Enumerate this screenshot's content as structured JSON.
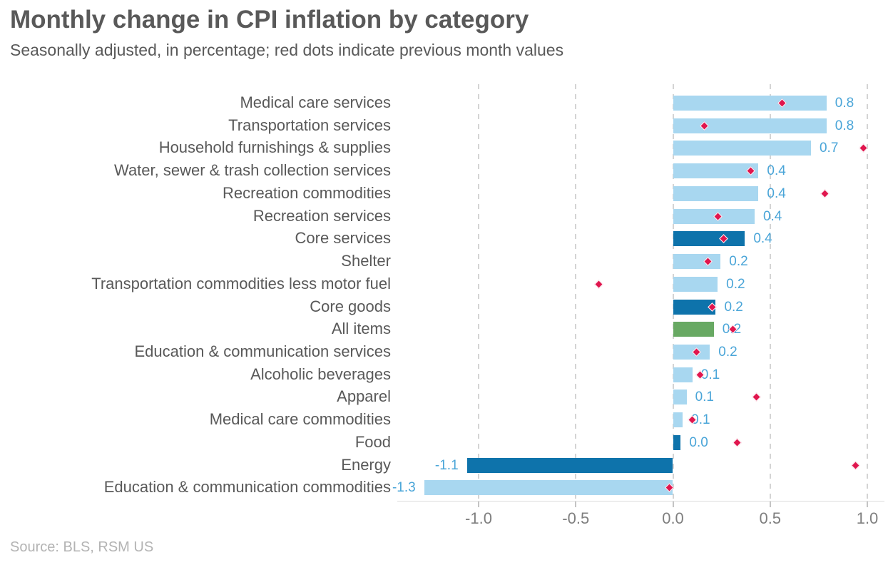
{
  "header": {
    "title": "Monthly change in CPI inflation by category",
    "subtitle": "Seasonally adjusted, in percentage; red dots indicate previous month values"
  },
  "footer": {
    "source": "Source: BLS, RSM US"
  },
  "colors": {
    "bar_light_blue": "#a8d7f0",
    "bar_dark_blue": "#0e73ab",
    "bar_green": "#68a963",
    "dot_red": "#e0164e",
    "value_label": "#4aa5d8",
    "category_label": "#595959",
    "axis_label": "#7f7f7f",
    "gridline": "#d4d4d4",
    "title_text": "#595959",
    "source_text": "#b3b3b3"
  },
  "chart_data": {
    "type": "bar",
    "orientation": "horizontal",
    "title": "Monthly change in CPI inflation by category",
    "subtitle": "Seasonally adjusted, in percentage; red dots indicate previous month values",
    "xlabel": "",
    "ylabel": "",
    "xlim": [
      -1.4,
      1.1
    ],
    "x_ticks": [
      -1.0,
      -0.5,
      0.0,
      0.5,
      1.0
    ],
    "x_tick_labels": [
      "-1.0",
      "-0.5",
      "0.0",
      "0.5",
      "1.0"
    ],
    "grid": "vertical-dashed",
    "legend": "none (red diamond markers = previous month values)",
    "series": [
      {
        "name": "current month change",
        "type": "bar"
      },
      {
        "name": "previous month change",
        "type": "scatter",
        "marker": "diamond"
      }
    ],
    "rows": [
      {
        "category": "Medical care services",
        "bar_value": 0.79,
        "value_label": "0.8",
        "prev_value": 0.56,
        "color": "light"
      },
      {
        "category": "Transportation services",
        "bar_value": 0.79,
        "value_label": "0.8",
        "prev_value": 0.16,
        "color": "light"
      },
      {
        "category": "Household furnishings & supplies",
        "bar_value": 0.71,
        "value_label": "0.7",
        "prev_value": 0.98,
        "color": "light"
      },
      {
        "category": "Water, sewer & trash collection services",
        "bar_value": 0.44,
        "value_label": "0.4",
        "prev_value": 0.4,
        "color": "light"
      },
      {
        "category": "Recreation commodities",
        "bar_value": 0.44,
        "value_label": "0.4",
        "prev_value": 0.78,
        "color": "light"
      },
      {
        "category": "Recreation services",
        "bar_value": 0.42,
        "value_label": "0.4",
        "prev_value": 0.23,
        "color": "light"
      },
      {
        "category": "Core services",
        "bar_value": 0.37,
        "value_label": "0.4",
        "prev_value": 0.26,
        "color": "dark"
      },
      {
        "category": "Shelter",
        "bar_value": 0.245,
        "value_label": "0.2",
        "prev_value": 0.18,
        "color": "light"
      },
      {
        "category": "Transportation commodities less motor fuel",
        "bar_value": 0.23,
        "value_label": "0.2",
        "prev_value": -0.38,
        "color": "light"
      },
      {
        "category": "Core goods",
        "bar_value": 0.22,
        "value_label": "0.2",
        "prev_value": 0.2,
        "color": "dark"
      },
      {
        "category": "All items",
        "bar_value": 0.21,
        "value_label": "0.2",
        "prev_value": 0.31,
        "color": "green"
      },
      {
        "category": "Education & communication services",
        "bar_value": 0.19,
        "value_label": "0.2",
        "prev_value": 0.12,
        "color": "light"
      },
      {
        "category": "Alcoholic beverages",
        "bar_value": 0.1,
        "value_label": "0.1",
        "prev_value": 0.14,
        "color": "light"
      },
      {
        "category": "Apparel",
        "bar_value": 0.07,
        "value_label": "0.1",
        "prev_value": 0.43,
        "color": "light"
      },
      {
        "category": "Medical care commodities",
        "bar_value": 0.05,
        "value_label": "0.1",
        "prev_value": 0.1,
        "color": "light"
      },
      {
        "category": "Food",
        "bar_value": 0.04,
        "value_label": "0.0",
        "prev_value": 0.33,
        "color": "dark"
      },
      {
        "category": "Energy",
        "bar_value": -1.06,
        "value_label": "-1.1",
        "prev_value": 0.94,
        "color": "dark"
      },
      {
        "category": "Education & communication commodities",
        "bar_value": -1.28,
        "value_label": "-1.3",
        "prev_value": -0.02,
        "color": "light"
      }
    ]
  }
}
